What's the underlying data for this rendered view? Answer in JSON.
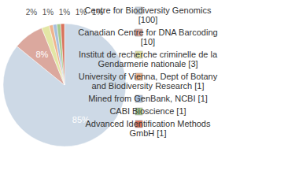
{
  "chart_data": {
    "type": "pie",
    "categories": [
      "Centre for Biodiversity Genomics [100]",
      "Canadian Centre for DNA Barcoding [10]",
      "Institut de recherche criminelle de la Gendarmerie nationale [3]",
      "University of Vienna, Dept of Botany and Biodiversity Research [1]",
      "Mined from GenBank, NCBI [1]",
      "CABI Bioscience [1]",
      "Advanced Identification Methods GmbH [1]"
    ],
    "values": [
      85,
      8,
      2,
      1,
      1,
      1,
      1
    ],
    "value_labels": [
      "85%",
      "8%",
      "2%",
      "1%",
      "1%",
      "1%",
      "1%"
    ],
    "colors": [
      "#cdd9e6",
      "#dba89e",
      "#e3e6a5",
      "#eeb38c",
      "#a8bfdc",
      "#a6ca8e",
      "#d9735c"
    ],
    "data_labels": true,
    "legend": "right"
  }
}
